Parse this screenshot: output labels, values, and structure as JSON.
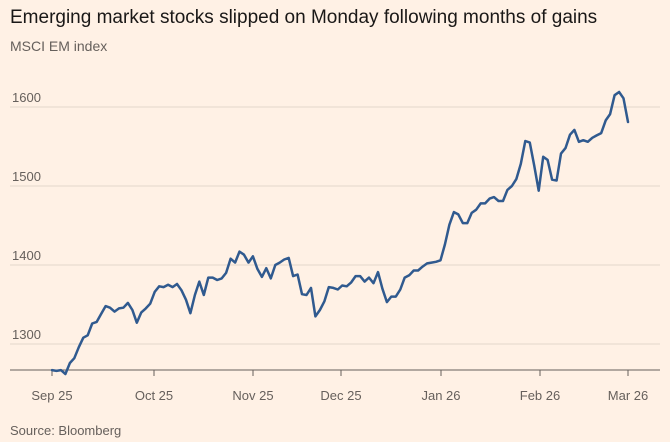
{
  "title": "Emerging market stocks slipped on Monday following months of gains",
  "subtitle": "MSCI EM index",
  "source": "Source: Bloomberg",
  "colors": {
    "background": "#fff1e5",
    "series": "#305a8f"
  },
  "chart_data": {
    "type": "line",
    "title": "Emerging market stocks slipped on Monday following months of gains",
    "subtitle": "MSCI EM index",
    "xlabel": "",
    "ylabel": "",
    "ylim": [
      1260,
      1630
    ],
    "yticks": [
      1300,
      1400,
      1500,
      1600
    ],
    "xticks": [
      "Sep 25",
      "Oct 25",
      "Nov 25",
      "Dec 25",
      "Jan 26",
      "Feb 26",
      "Mar 26"
    ],
    "grid": true,
    "legend": "none",
    "values": [
      1267,
      1266,
      1267,
      1262,
      1276,
      1282,
      1296,
      1308,
      1311,
      1326,
      1328,
      1338,
      1348,
      1346,
      1341,
      1345,
      1346,
      1352,
      1343,
      1327,
      1340,
      1345,
      1351,
      1366,
      1373,
      1372,
      1375,
      1372,
      1376,
      1368,
      1356,
      1339,
      1362,
      1379,
      1362,
      1384,
      1384,
      1381,
      1383,
      1390,
      1408,
      1403,
      1417,
      1413,
      1403,
      1411,
      1395,
      1385,
      1396,
      1383,
      1400,
      1403,
      1407,
      1409,
      1386,
      1388,
      1363,
      1362,
      1371,
      1335,
      1343,
      1354,
      1372,
      1371,
      1369,
      1374,
      1373,
      1378,
      1386,
      1386,
      1379,
      1384,
      1377,
      1391,
      1370,
      1353,
      1360,
      1360,
      1369,
      1384,
      1387,
      1393,
      1393,
      1398,
      1402,
      1403,
      1404,
      1406,
      1426,
      1451,
      1467,
      1464,
      1453,
      1453,
      1466,
      1470,
      1478,
      1478,
      1484,
      1486,
      1481,
      1481,
      1495,
      1500,
      1509,
      1528,
      1557,
      1555,
      1526,
      1494,
      1537,
      1533,
      1508,
      1507,
      1541,
      1548,
      1565,
      1571,
      1556,
      1558,
      1556,
      1561,
      1564,
      1567,
      1583,
      1591,
      1615,
      1619,
      1611,
      1581
    ]
  }
}
